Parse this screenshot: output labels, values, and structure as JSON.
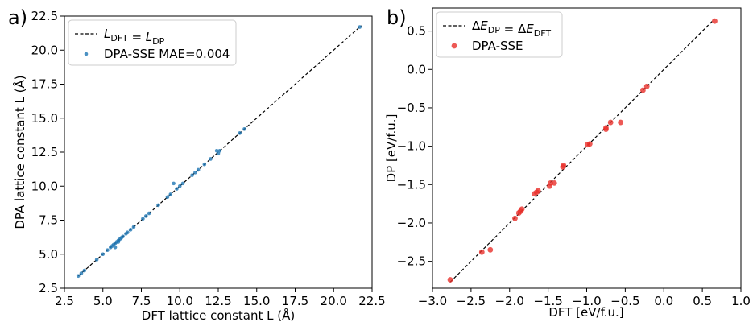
{
  "chart_data": [
    {
      "type": "scatter",
      "panel_label": "a)",
      "xlabel": "DFT lattice constant L (Å)",
      "ylabel": "DPA lattice constant L (Å)",
      "xlim": [
        2.5,
        22.5
      ],
      "ylim": [
        2.5,
        22.5
      ],
      "xticks": [
        "2.5",
        "5.0",
        "7.5",
        "10.0",
        "12.5",
        "15.0",
        "17.5",
        "20.0",
        "22.5"
      ],
      "yticks": [
        "2.5",
        "5.0",
        "7.5",
        "10.0",
        "12.5",
        "15.0",
        "17.5",
        "20.0",
        "22.5"
      ],
      "grid": false,
      "legend_position": "upper-left",
      "series": [
        {
          "name": "L_DFT = L_DP",
          "kind": "line",
          "style": "dashed",
          "color": "#000000",
          "x": [
            3.4,
            21.8
          ],
          "y": [
            3.4,
            21.8
          ]
        },
        {
          "name": "DPA-SSE MAE=0.004",
          "kind": "scatter",
          "color": "#1f77b4",
          "x": [
            3.4,
            3.6,
            3.8,
            4.6,
            5.0,
            5.3,
            5.5,
            5.6,
            5.7,
            5.8,
            5.9,
            6.0,
            6.1,
            6.2,
            6.3,
            6.5,
            6.6,
            6.8,
            7.0,
            7.6,
            7.8,
            8.0,
            8.6,
            9.2,
            9.4,
            9.6,
            9.8,
            10.0,
            10.2,
            10.8,
            11.0,
            11.2,
            11.6,
            12.0,
            12.4,
            12.5,
            12.6,
            13.9,
            14.2,
            21.7,
            6.0,
            5.8
          ],
          "y": [
            3.4,
            3.6,
            3.8,
            4.6,
            5.0,
            5.3,
            5.5,
            5.6,
            5.7,
            5.8,
            5.9,
            6.0,
            6.1,
            6.2,
            6.3,
            6.5,
            6.6,
            6.8,
            7.0,
            7.6,
            7.8,
            8.0,
            8.6,
            9.2,
            9.4,
            10.2,
            9.8,
            10.0,
            10.2,
            10.8,
            11.0,
            11.2,
            11.6,
            12.0,
            12.6,
            12.4,
            12.6,
            13.9,
            14.2,
            21.7,
            5.9,
            5.5
          ]
        }
      ]
    },
    {
      "type": "scatter",
      "panel_label": "b)",
      "xlabel": "DFT [eV/f.u.]",
      "ylabel": "DP [eV/f.u.]",
      "xlim": [
        -3.0,
        1.0
      ],
      "ylim": [
        -2.85,
        0.8
      ],
      "xticks": [
        "−3.0",
        "−2.5",
        "−2.0",
        "−1.5",
        "−1.0",
        "−0.5",
        "0.0",
        "0.5",
        "1.0"
      ],
      "yticks": [
        "−2.5",
        "−2.0",
        "−1.5",
        "−1.0",
        "−0.5",
        "0.0",
        "0.5"
      ],
      "grid": false,
      "legend_position": "upper-left",
      "series": [
        {
          "name": "ΔE_DP = ΔE_DFT",
          "kind": "line",
          "style": "dashed",
          "color": "#000000",
          "x": [
            -2.77,
            0.66
          ],
          "y": [
            -2.77,
            0.66
          ]
        },
        {
          "name": "DPA-SSE",
          "kind": "scatter",
          "color": "#e8302a",
          "x": [
            -2.77,
            -2.36,
            -2.25,
            -1.93,
            -1.88,
            -1.86,
            -1.84,
            -1.68,
            -1.65,
            -1.63,
            -1.48,
            -1.47,
            -1.42,
            -1.31,
            -1.3,
            -0.99,
            -0.96,
            -0.75,
            -0.75,
            -0.69,
            -0.56,
            -0.27,
            -0.22,
            0.66
          ],
          "y": [
            -2.74,
            -2.38,
            -2.35,
            -1.94,
            -1.87,
            -1.85,
            -1.82,
            -1.62,
            -1.6,
            -1.58,
            -1.52,
            -1.48,
            -1.48,
            -1.27,
            -1.25,
            -0.98,
            -0.97,
            -0.78,
            -0.76,
            -0.69,
            -0.69,
            -0.27,
            -0.22,
            0.63
          ]
        }
      ]
    }
  ]
}
